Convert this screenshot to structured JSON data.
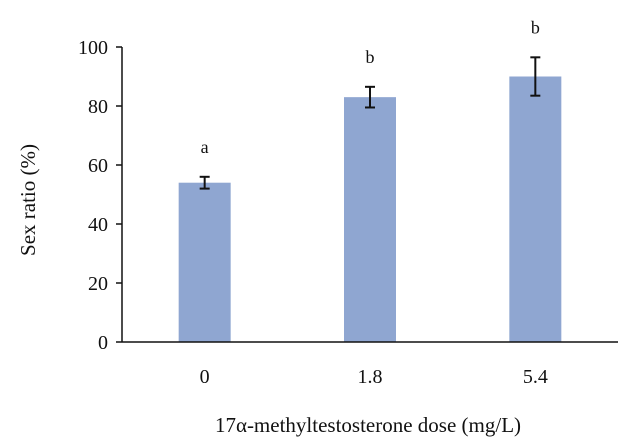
{
  "chart_data": {
    "type": "bar",
    "categories": [
      "0",
      "1.8",
      "5.4"
    ],
    "values": [
      54,
      83,
      90
    ],
    "errors": [
      2,
      3.5,
      6.5
    ],
    "significance_labels": [
      "a",
      "b",
      "b"
    ],
    "xlabel": "17α-methyltestosterone dose (mg/L)",
    "ylabel": "Sex ratio (%)",
    "ylim": [
      0,
      100
    ],
    "yticks": [
      0,
      20,
      40,
      60,
      80,
      100
    ],
    "grid": false,
    "bar_color": "#8fa6d1"
  }
}
